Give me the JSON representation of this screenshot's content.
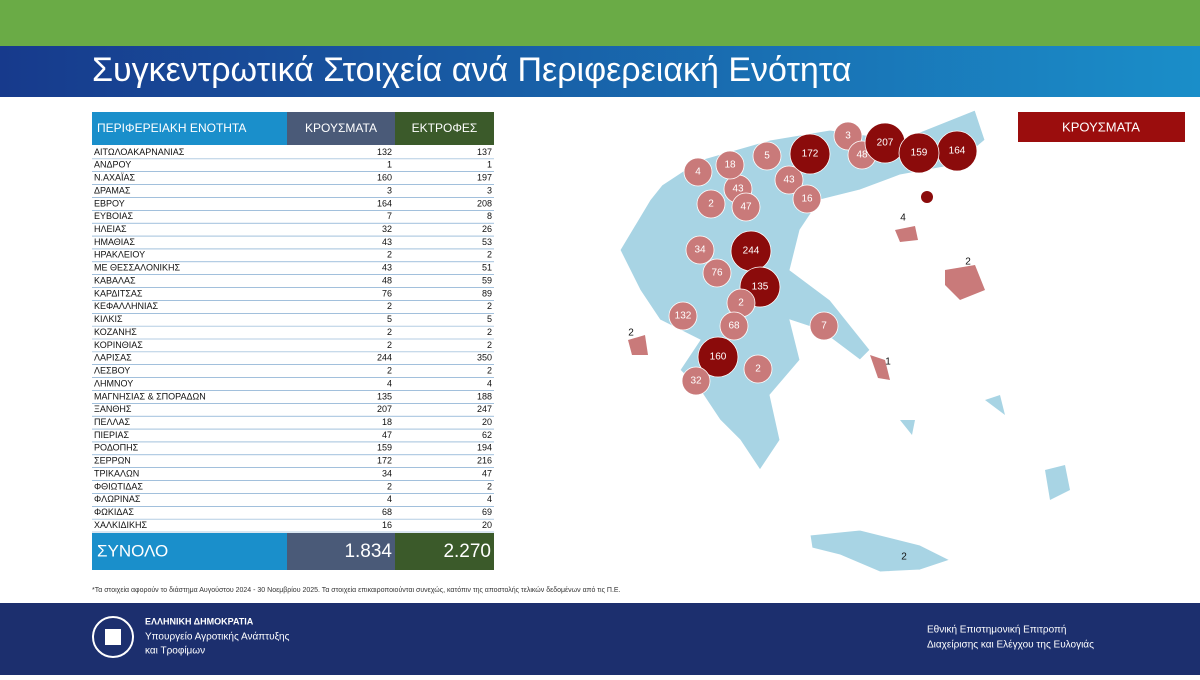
{
  "header": {
    "title": "Συγκεντρωτικά Στοιχεία ανά Περιφερειακή Ενότητα"
  },
  "table": {
    "columns": [
      "ΠΕΡΙΦΕΡΕΙΑΚΗ ΕΝΟΤΗΤΑ",
      "ΚΡΟΥΣΜΑΤΑ",
      "ΕΚΤΡΟΦΕΣ"
    ],
    "rows": [
      [
        "ΑΙΤΩΛΟΑΚΑΡΝΑΝΙΑΣ",
        132,
        137
      ],
      [
        "ΑΝΔΡΟΥ",
        1,
        1
      ],
      [
        "Ν.ΑΧΑΪΑΣ",
        160,
        197
      ],
      [
        "ΔΡΑΜΑΣ",
        3,
        3
      ],
      [
        "ΕΒΡΟΥ",
        164,
        208
      ],
      [
        "ΕΥΒΟΙΑΣ",
        7,
        8
      ],
      [
        "ΗΛΕΙΑΣ",
        32,
        26
      ],
      [
        "ΗΜΑΘΙΑΣ",
        43,
        53
      ],
      [
        "ΗΡΑΚΛΕΙΟΥ",
        2,
        2
      ],
      [
        "ΜΕ ΘΕΣΣΑΛΟΝΙΚΗΣ",
        43,
        51
      ],
      [
        "ΚΑΒΑΛΑΣ",
        48,
        59
      ],
      [
        "ΚΑΡΔΙΤΣΑΣ",
        76,
        89
      ],
      [
        "ΚΕΦΑΛΛΗΝΙΑΣ",
        2,
        2
      ],
      [
        "ΚΙΛΚΙΣ",
        5,
        5
      ],
      [
        "ΚΟΖΑΝΗΣ",
        2,
        2
      ],
      [
        "ΚΟΡΙΝΘΙΑΣ",
        2,
        2
      ],
      [
        "ΛΑΡΙΣΑΣ",
        244,
        350
      ],
      [
        "ΛΕΣΒΟΥ",
        2,
        2
      ],
      [
        "ΛΗΜΝΟΥ",
        4,
        4
      ],
      [
        "ΜΑΓΝΗΣΙΑΣ & ΣΠΟΡΑΔΩΝ",
        135,
        188
      ],
      [
        "ΞΑΝΘΗΣ",
        207,
        247
      ],
      [
        "ΠΕΛΛΑΣ",
        18,
        20
      ],
      [
        "ΠΙΕΡΙΑΣ",
        47,
        62
      ],
      [
        "ΡΟΔΟΠΗΣ",
        159,
        194
      ],
      [
        "ΣΕΡΡΩΝ",
        172,
        216
      ],
      [
        "ΤΡΙΚΑΛΩΝ",
        34,
        47
      ],
      [
        "ΦΘΙΩΤΙΔΑΣ",
        2,
        2
      ],
      [
        "ΦΛΩΡΙΝΑΣ",
        4,
        4
      ],
      [
        "ΦΩΚΙΔΑΣ",
        68,
        69
      ],
      [
        "ΧΑΛΚΙΔΙΚΗΣ",
        16,
        20
      ]
    ],
    "total": [
      "ΣΥΝΟΛΟ",
      "1.834",
      "2.270"
    ]
  },
  "map": {
    "legend": "ΚΡΟΥΣΜΑΤΑ"
  },
  "footnote": "*Τα στοιχεία αφορούν το διάστημα Αυγούστου 2024 - 30 Νοεμβρίου 2025. Τα στοιχεία επικαιροποιούνται συνεχώς, κατόπιν της αποστολής τελικών δεδομένων από τις Π.Ε.",
  "footer": {
    "left": [
      "ΕΛΛΗΝΙΚΗ ΔΗΜΟΚΡΑΤΙΑ",
      "Υπουργείο Αγροτικής Ανάπτυξης",
      "και Τροφίμων"
    ],
    "right": [
      "Εθνική Επιστημονική Επιτροπή",
      "Διαχείρισης και Ελέγχου της Ευλογιάς"
    ]
  }
}
